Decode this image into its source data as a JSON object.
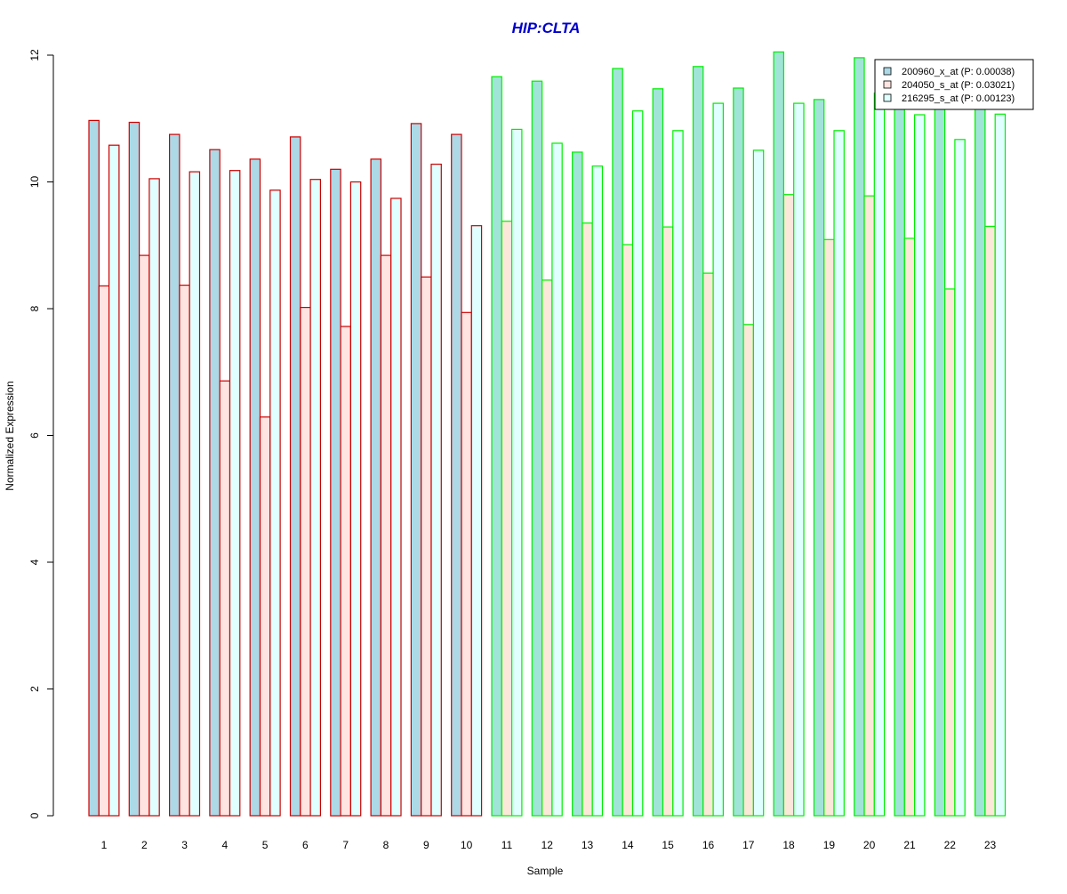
{
  "chart_data": {
    "type": "bar",
    "title": "HIP:CLTA",
    "xlabel": "Sample",
    "ylabel": "Normalized Expression",
    "ylim": [
      0,
      12
    ],
    "yticks": [
      "0",
      "2",
      "4",
      "6",
      "8",
      "10",
      "12"
    ],
    "grid": false,
    "legend_position": "top-right",
    "categories": [
      "1",
      "2",
      "3",
      "4",
      "5",
      "6",
      "7",
      "8",
      "9",
      "10",
      "11",
      "12",
      "13",
      "14",
      "15",
      "16",
      "17",
      "18",
      "19",
      "20",
      "21",
      "22",
      "23"
    ],
    "group_a_count": 10,
    "series": [
      {
        "name": "200960_x_at (P: 0.00038)",
        "values": [
          10.97,
          10.94,
          10.75,
          10.51,
          10.36,
          10.71,
          10.2,
          10.36,
          10.92,
          10.75,
          11.66,
          11.59,
          10.47,
          11.79,
          11.47,
          11.82,
          11.48,
          12.05,
          11.3,
          11.96,
          11.55,
          11.61,
          11.62
        ]
      },
      {
        "name": "204050_s_at (P: 0.03021)",
        "values": [
          8.36,
          8.84,
          8.37,
          6.86,
          6.29,
          8.02,
          7.72,
          8.84,
          8.5,
          7.94,
          9.38,
          8.45,
          9.35,
          9.01,
          9.29,
          8.56,
          7.75,
          9.8,
          9.09,
          9.78,
          9.11,
          8.31,
          9.3
        ]
      },
      {
        "name": "216295_s_at (P: 0.00123)",
        "values": [
          10.58,
          10.05,
          10.16,
          10.18,
          9.87,
          10.04,
          10.0,
          9.74,
          10.28,
          9.31,
          10.83,
          10.61,
          10.25,
          11.12,
          10.81,
          11.24,
          10.5,
          11.24,
          10.81,
          11.4,
          11.06,
          10.67,
          11.07
        ]
      }
    ],
    "colors": {
      "title": "#0000cc",
      "fill_a": [
        "#add8e6",
        "#ffe4e1",
        "#e0ffff"
      ],
      "fill_b": [
        "#a0e4d8",
        "#fce8d8",
        "#e0ffff"
      ],
      "border_a": "#cc0000",
      "border_b": "#00ee00",
      "legend_fill": [
        "#add8e6",
        "#ffe4e1",
        "#e0ffff"
      ]
    }
  }
}
